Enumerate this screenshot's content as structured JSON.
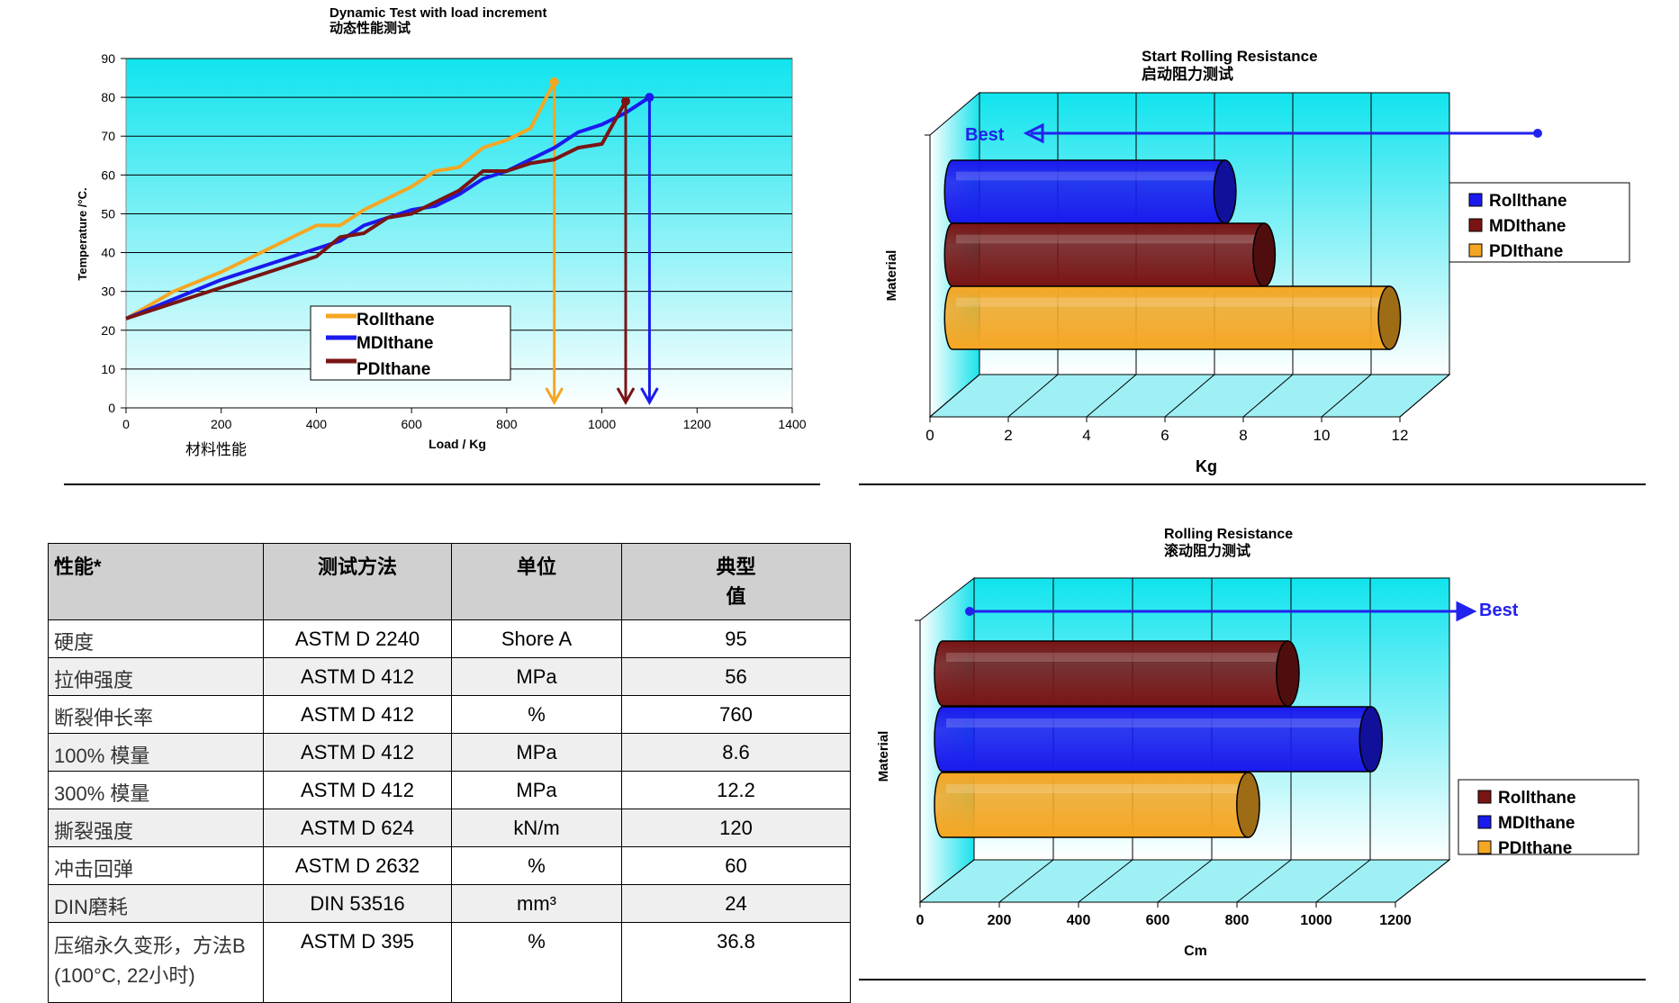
{
  "colors": {
    "rollthane": "#f5a623",
    "mdithane": "#1a1aee",
    "pdithane": "#7a1414",
    "cyan": "#1be0ec",
    "best_arrow": "#2222ee"
  },
  "chart_data": [
    {
      "type": "line",
      "title": "Dynamic Test with load increment",
      "subtitle": "动态性能测试",
      "xlabel": "Load / Kg",
      "ylabel": "Temperature /°C.",
      "caption": "材料性能",
      "xlim": [
        0,
        1400
      ],
      "ylim": [
        0,
        90
      ],
      "xticks": [
        "0",
        "200",
        "400",
        "600",
        "800",
        "1000",
        "1200",
        "1400"
      ],
      "yticks": [
        "0",
        "10",
        "20",
        "30",
        "40",
        "50",
        "60",
        "70",
        "80",
        "90"
      ],
      "series": [
        {
          "name": "Rollthane",
          "color": "#f5a623",
          "x": [
            0,
            100,
            200,
            300,
            400,
            450,
            500,
            550,
            600,
            650,
            700,
            750,
            800,
            850,
            900
          ],
          "y": [
            23,
            30,
            35,
            41,
            47,
            47,
            51,
            54,
            57,
            61,
            62,
            67,
            69,
            72,
            84
          ],
          "drop_to_x": 900
        },
        {
          "name": "MDIthane",
          "color": "#1a1aee",
          "x": [
            0,
            100,
            200,
            300,
            400,
            450,
            500,
            550,
            600,
            650,
            700,
            750,
            800,
            850,
            900,
            950,
            1000,
            1050,
            1100
          ],
          "y": [
            23,
            28,
            33,
            37,
            41,
            43,
            47,
            49,
            51,
            52,
            55,
            59,
            61,
            64,
            67,
            71,
            73,
            76,
            80
          ],
          "drop_to_x": 1100
        },
        {
          "name": "PDIthane",
          "color": "#7a1414",
          "x": [
            0,
            100,
            200,
            300,
            400,
            450,
            500,
            550,
            600,
            650,
            700,
            750,
            800,
            850,
            900,
            950,
            1000,
            1050
          ],
          "y": [
            23,
            27,
            31,
            35,
            39,
            44,
            45,
            49,
            50,
            53,
            56,
            61,
            61,
            63,
            64,
            67,
            68,
            79
          ],
          "drop_to_x": 1050
        }
      ],
      "legend": [
        "Rollthane",
        "MDIthane",
        "PDIthane"
      ]
    },
    {
      "type": "bar",
      "orientation": "horizontal-3d",
      "title": "Start Rolling Resistance",
      "subtitle": "启动阻力测试",
      "xlabel": "Kg",
      "ylabel": "Material",
      "xlim": [
        0,
        12
      ],
      "xticks": [
        "0",
        "2",
        "4",
        "6",
        "8",
        "10",
        "12"
      ],
      "best_label": "Best",
      "best_direction": "left",
      "series": [
        {
          "name": "Rollthane",
          "color": "#1a1aee",
          "value": 6.9
        },
        {
          "name": "MDIthane",
          "color": "#7a1414",
          "value": 7.9
        },
        {
          "name": "PDIthane",
          "color": "#f5a623",
          "value": 11.1
        }
      ],
      "legend": [
        {
          "label": "Rollthane",
          "color": "#1a1aee"
        },
        {
          "label": "MDIthane",
          "color": "#7a1414"
        },
        {
          "label": "PDIthane",
          "color": "#f5a623"
        }
      ]
    },
    {
      "type": "bar",
      "orientation": "horizontal-3d",
      "title": "Rolling Resistance",
      "subtitle": "滚动阻力测试",
      "xlabel": "Cm",
      "ylabel": "Material",
      "xlim": [
        0,
        1200
      ],
      "xticks": [
        "0",
        "200",
        "400",
        "600",
        "800",
        "1000",
        "1200"
      ],
      "best_label": "Best",
      "best_direction": "right",
      "series": [
        {
          "name": "Rollthane",
          "color": "#7a1414",
          "value": 860
        },
        {
          "name": "MDIthane",
          "color": "#1a1aee",
          "value": 1070
        },
        {
          "name": "PDIthane",
          "color": "#f5a623",
          "value": 760
        }
      ],
      "legend": [
        {
          "label": "Rollthane",
          "color": "#7a1414"
        },
        {
          "label": "MDIthane",
          "color": "#1a1aee"
        },
        {
          "label": "PDIthane",
          "color": "#f5a623"
        }
      ]
    }
  ],
  "table": {
    "headers": [
      "性能*",
      "测试方法",
      "单位",
      "典型"
    ],
    "headers_line2": "值",
    "rows": [
      [
        "硬度",
        "ASTM D 2240",
        "Shore A",
        "95"
      ],
      [
        "拉伸强度",
        "ASTM D 412",
        "MPa",
        "56"
      ],
      [
        "断裂伸长率",
        "ASTM D 412",
        "%",
        "760"
      ],
      [
        "100% 模量",
        "ASTM D 412",
        "MPa",
        "8.6"
      ],
      [
        "300% 模量",
        "ASTM D 412",
        "MPa",
        "12.2"
      ],
      [
        "撕裂强度",
        "ASTM D 624",
        "kN/m",
        "120"
      ],
      [
        "冲击回弹",
        "ASTM D 2632",
        "%",
        "60"
      ],
      [
        "DIN磨耗",
        "DIN 53516",
        "mm³",
        "24"
      ]
    ],
    "last_row": [
      "压缩永久变形，方法B",
      "ASTM D 395",
      "%",
      "36.8"
    ],
    "last_row_line2": "(100°C, 22小时)"
  }
}
